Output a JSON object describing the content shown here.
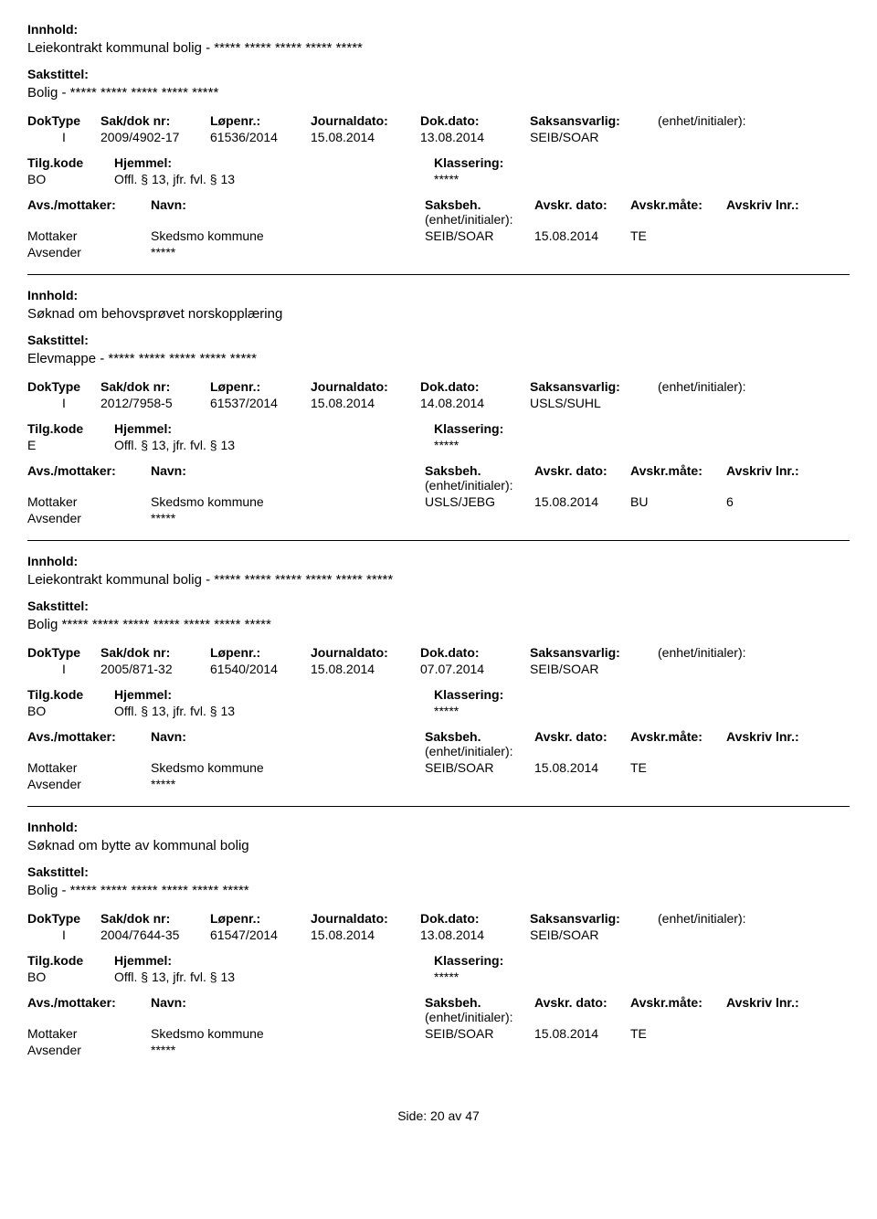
{
  "labels": {
    "innhold": "Innhold:",
    "sakstittel": "Sakstittel:",
    "doktype": "DokType",
    "sakdoknr": "Sak/dok nr:",
    "lopenr": "Løpenr.:",
    "journaldato": "Journaldato:",
    "dokdato": "Dok.dato:",
    "saksansvarlig": "Saksansvarlig:",
    "enhet_init": "(enhet/initialer):",
    "tilgkode": "Tilg.kode",
    "hjemmel": "Hjemmel:",
    "klassering": "Klassering:",
    "avs_mottaker": "Avs./mottaker:",
    "navn": "Navn:",
    "saksbeh": "Saksbeh.",
    "saksbeh_enhet": "(enhet/initialer):",
    "avskr_dato": "Avskr. dato:",
    "avskr_mate": "Avskr.måte:",
    "avskriv_lnr": "Avskriv lnr.:",
    "mottaker": "Mottaker",
    "avsender": "Avsender",
    "side": "Side:",
    "av": "av"
  },
  "footer": {
    "current_page": "20",
    "total_pages": "47"
  },
  "entries": [
    {
      "innhold": "Leiekontrakt kommunal bolig - ***** ***** ***** ***** *****",
      "sakstittel": "Bolig - ***** ***** ***** ***** *****",
      "doktype": "I",
      "sakdoknr": "2009/4902-17",
      "lopenr": "61536/2014",
      "journaldato": "15.08.2014",
      "dokdato": "13.08.2014",
      "saksansvarlig": "SEIB/SOAR",
      "tilgkode": "BO",
      "hjemmel": "Offl. § 13, jfr. fvl. § 13",
      "klassering": "*****",
      "parties": [
        {
          "role": "Mottaker",
          "navn": "Skedsmo kommune",
          "saksbeh": "SEIB/SOAR",
          "avskr_dato": "15.08.2014",
          "avskr_mate": "TE",
          "avskriv_lnr": ""
        },
        {
          "role": "Avsender",
          "navn": "*****",
          "saksbeh": "",
          "avskr_dato": "",
          "avskr_mate": "",
          "avskriv_lnr": ""
        }
      ]
    },
    {
      "innhold": "Søknad om behovsprøvet norskopplæring",
      "sakstittel": "Elevmappe - ***** ***** ***** ***** *****",
      "doktype": "I",
      "sakdoknr": "2012/7958-5",
      "lopenr": "61537/2014",
      "journaldato": "15.08.2014",
      "dokdato": "14.08.2014",
      "saksansvarlig": "USLS/SUHL",
      "tilgkode": "E",
      "hjemmel": "Offl. § 13, jfr. fvl. § 13",
      "klassering": "*****",
      "parties": [
        {
          "role": "Mottaker",
          "navn": "Skedsmo kommune",
          "saksbeh": "USLS/JEBG",
          "avskr_dato": "15.08.2014",
          "avskr_mate": "BU",
          "avskriv_lnr": "6"
        },
        {
          "role": "Avsender",
          "navn": "*****",
          "saksbeh": "",
          "avskr_dato": "",
          "avskr_mate": "",
          "avskriv_lnr": ""
        }
      ]
    },
    {
      "innhold": "Leiekontrakt kommunal bolig - *****  ***** ***** ***** ***** *****",
      "sakstittel": "Bolig ***** *****  ***** ***** ***** ***** *****",
      "doktype": "I",
      "sakdoknr": "2005/871-32",
      "lopenr": "61540/2014",
      "journaldato": "15.08.2014",
      "dokdato": "07.07.2014",
      "saksansvarlig": "SEIB/SOAR",
      "tilgkode": "BO",
      "hjemmel": "Offl. § 13, jfr. fvl. § 13",
      "klassering": "*****",
      "parties": [
        {
          "role": "Mottaker",
          "navn": "Skedsmo kommune",
          "saksbeh": "SEIB/SOAR",
          "avskr_dato": "15.08.2014",
          "avskr_mate": "TE",
          "avskriv_lnr": ""
        },
        {
          "role": "Avsender",
          "navn": "*****",
          "saksbeh": "",
          "avskr_dato": "",
          "avskr_mate": "",
          "avskriv_lnr": ""
        }
      ]
    },
    {
      "innhold": "Søknad om bytte av kommunal bolig",
      "sakstittel": "Bolig - ***** ***** ***** ***** ***** *****",
      "doktype": "I",
      "sakdoknr": "2004/7644-35",
      "lopenr": "61547/2014",
      "journaldato": "15.08.2014",
      "dokdato": "13.08.2014",
      "saksansvarlig": "SEIB/SOAR",
      "tilgkode": "BO",
      "hjemmel": "Offl. § 13, jfr. fvl. § 13",
      "klassering": "*****",
      "parties": [
        {
          "role": "Mottaker",
          "navn": "Skedsmo kommune",
          "saksbeh": "SEIB/SOAR",
          "avskr_dato": "15.08.2014",
          "avskr_mate": "TE",
          "avskriv_lnr": ""
        },
        {
          "role": "Avsender",
          "navn": "*****",
          "saksbeh": "",
          "avskr_dato": "",
          "avskr_mate": "",
          "avskriv_lnr": ""
        }
      ]
    }
  ]
}
